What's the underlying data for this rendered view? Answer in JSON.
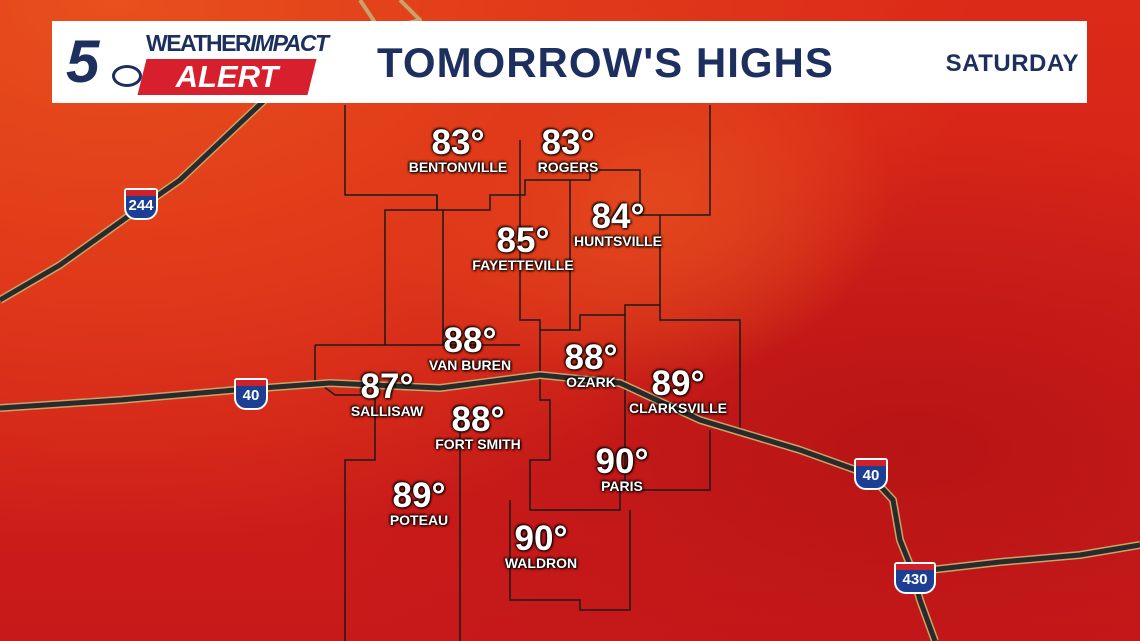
{
  "header": {
    "logo_number": "5",
    "logo_line1_a": "WEATHER",
    "logo_line1_b": "IMPACT",
    "logo_line2": "ALERT",
    "title": "TOMORROW'S HIGHS",
    "day": "SATURDAY"
  },
  "cities": [
    {
      "name": "BENTONVILLE",
      "temp": "83°"
    },
    {
      "name": "ROGERS",
      "temp": "83°"
    },
    {
      "name": "HUNTSVILLE",
      "temp": "84°"
    },
    {
      "name": "FAYETTEVILLE",
      "temp": "85°"
    },
    {
      "name": "VAN BUREN",
      "temp": "88°"
    },
    {
      "name": "OZARK",
      "temp": "88°"
    },
    {
      "name": "SALLISAW",
      "temp": "87°"
    },
    {
      "name": "CLARKSVILLE",
      "temp": "89°"
    },
    {
      "name": "FORT SMITH",
      "temp": "88°"
    },
    {
      "name": "PARIS",
      "temp": "90°"
    },
    {
      "name": "POTEAU",
      "temp": "89°"
    },
    {
      "name": "WALDRON",
      "temp": "90°"
    }
  ],
  "interstates": [
    "244",
    "40",
    "40",
    "430"
  ],
  "colors": {
    "brand_navy": "#1c2f5e",
    "alert_red": "#d71f2e",
    "heat_high": "#c8191a",
    "heat_low": "#e8501c"
  }
}
